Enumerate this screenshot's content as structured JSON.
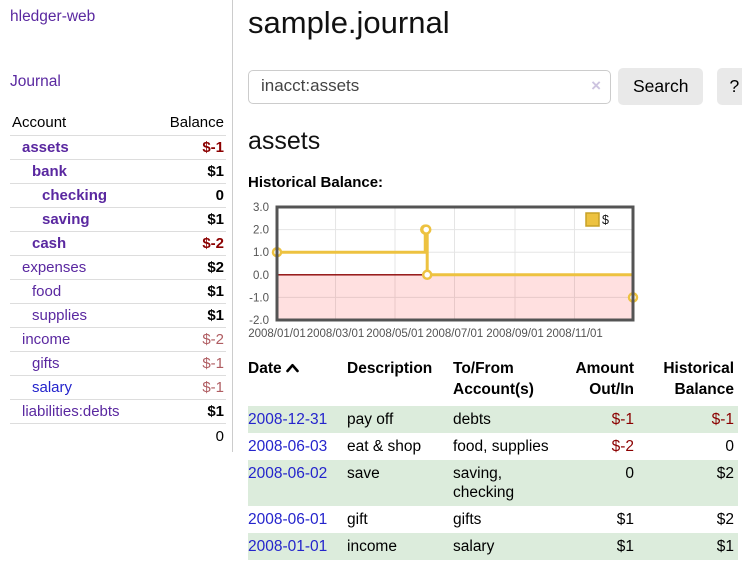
{
  "sidebar": {
    "brand": "hledger-web",
    "journal_link": "Journal",
    "table": {
      "account_header": "Account",
      "balance_header": "Balance",
      "rows": [
        {
          "name": "assets",
          "balance": "$-1",
          "level": 1,
          "bold": true,
          "neg": "strong"
        },
        {
          "name": "bank",
          "balance": "$1",
          "level": 2,
          "bold": true,
          "neg": "none"
        },
        {
          "name": "checking",
          "balance": "0",
          "level": 3,
          "bold": true,
          "neg": "none"
        },
        {
          "name": "saving",
          "balance": "$1",
          "level": 3,
          "bold": true,
          "neg": "none"
        },
        {
          "name": "cash",
          "balance": "$-2",
          "level": 2,
          "bold": true,
          "neg": "strong"
        },
        {
          "name": "expenses",
          "balance": "$2",
          "level": 1,
          "bold": false,
          "neg": "none"
        },
        {
          "name": "food",
          "balance": "$1",
          "level": 2,
          "bold": false,
          "neg": "none"
        },
        {
          "name": "supplies",
          "balance": "$1",
          "level": 2,
          "bold": false,
          "neg": "none"
        },
        {
          "name": "income",
          "balance": "$-2",
          "level": 1,
          "bold": false,
          "neg": "soft"
        },
        {
          "name": "gifts",
          "balance": "$-1",
          "level": 2,
          "bold": false,
          "neg": "soft"
        },
        {
          "name": "salary",
          "balance": "$-1",
          "level": 2,
          "bold": false,
          "neg": "soft",
          "link": "blue"
        },
        {
          "name": "liabilities:debts",
          "balance": "$1",
          "level": 1,
          "bold": false,
          "neg": "none"
        }
      ],
      "total": "0"
    }
  },
  "main": {
    "title": "sample.journal",
    "search": {
      "value": "inacct:assets",
      "clear_icon": "×",
      "search_button": "Search",
      "help_button": "?"
    },
    "account_heading": "assets",
    "chart_label": "Historical Balance:"
  },
  "chart_data": {
    "type": "line",
    "step": true,
    "title": "Historical Balance",
    "xlabel": "",
    "ylabel": "",
    "grid": true,
    "legend": {
      "label": "$",
      "position": "top-right"
    },
    "x_range_days": [
      0,
      365
    ],
    "y_range": [
      -2,
      3
    ],
    "x_ticks": [
      {
        "label": "2008/01/01",
        "day": 0
      },
      {
        "label": "2008/03/01",
        "day": 60
      },
      {
        "label": "2008/05/01",
        "day": 121
      },
      {
        "label": "2008/07/01",
        "day": 182
      },
      {
        "label": "2008/09/01",
        "day": 244
      },
      {
        "label": "2008/11/01",
        "day": 305
      }
    ],
    "y_ticks": [
      {
        "label": "3.0",
        "value": 3
      },
      {
        "label": "2.0",
        "value": 2
      },
      {
        "label": "1.0",
        "value": 1
      },
      {
        "label": "0.0",
        "value": 0
      },
      {
        "label": "-1.0",
        "value": -1
      },
      {
        "label": "-2.0",
        "value": -2
      }
    ],
    "series": [
      {
        "name": "$",
        "color": "#EDC240",
        "points": [
          {
            "date": "2008-01-01",
            "day": 0,
            "value": 1
          },
          {
            "date": "2008-06-01",
            "day": 152,
            "value": 2
          },
          {
            "date": "2008-06-02",
            "day": 153,
            "value": 2
          },
          {
            "date": "2008-06-03",
            "day": 154,
            "value": 0
          },
          {
            "date": "2008-12-31",
            "day": 365,
            "value": -1
          }
        ]
      }
    ],
    "zero_line_color": "#8b0000",
    "negative_region_color": "rgba(255,0,0,0.12)",
    "grid_color": "#e5e5e5",
    "border_color": "#545454",
    "tick_label_color": "#545454"
  },
  "register": {
    "headers": {
      "date": "Date",
      "description": "Description",
      "account": "To/From Account(s)",
      "amount": "Amount Out/In",
      "balance": "Historical Balance"
    },
    "sort": "ascending",
    "rows": [
      {
        "date": "2008-12-31",
        "description": "pay off",
        "accounts": "debts",
        "amount": "$-1",
        "balance": "$-1",
        "amount_neg": true,
        "balance_neg": true
      },
      {
        "date": "2008-06-03",
        "description": "eat & shop",
        "accounts": "food, supplies",
        "amount": "$-2",
        "balance": "0",
        "amount_neg": true,
        "balance_neg": false
      },
      {
        "date": "2008-06-02",
        "description": "save",
        "accounts": "saving, checking",
        "amount": "0",
        "balance": "$2",
        "amount_neg": false,
        "balance_neg": false
      },
      {
        "date": "2008-06-01",
        "description": "gift",
        "accounts": "gifts",
        "amount": "$1",
        "balance": "$2",
        "amount_neg": false,
        "balance_neg": false
      },
      {
        "date": "2008-01-01",
        "description": "income",
        "accounts": "salary",
        "amount": "$1",
        "balance": "$1",
        "amount_neg": false,
        "balance_neg": false
      }
    ]
  },
  "colors": {
    "link_purple": "#5a28a0",
    "link_blue": "#2424cc",
    "negative_strong": "#8b0000",
    "negative_soft": "#b05d62",
    "row_stripe_green": "#dcecdc",
    "chart_series_gold": "#EDC240"
  }
}
